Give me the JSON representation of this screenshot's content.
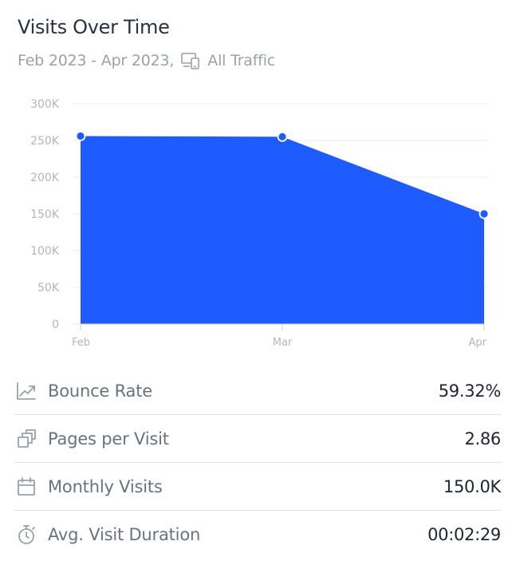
{
  "header": {
    "title": "Visits Over Time",
    "date_range": "Feb 2023 - Apr 2023,",
    "device_icon": "devices-icon",
    "traffic": "All Traffic"
  },
  "chart_data": {
    "type": "area",
    "categories": [
      "Feb",
      "Mar",
      "Apr"
    ],
    "series": [
      {
        "values": [
          256000,
          255000,
          150000
        ]
      }
    ],
    "y_ticks": [
      "0",
      "50K",
      "100K",
      "150K",
      "200K",
      "250K",
      "300K"
    ],
    "ylim": [
      0,
      300000
    ],
    "grid": true,
    "colors": {
      "fill": "#1f5cff",
      "point": "#1f5cff",
      "point_stroke": "#ffffff",
      "grid": "#eeeeee",
      "tick": "#b5b5b5"
    }
  },
  "metrics": [
    {
      "icon": "trend-arrow-icon",
      "label": "Bounce Rate",
      "value": "59.32%"
    },
    {
      "icon": "pages-stack-icon",
      "label": "Pages per Visit",
      "value": "2.86"
    },
    {
      "icon": "calendar-icon",
      "label": "Monthly Visits",
      "value": "150.0K"
    },
    {
      "icon": "stopwatch-icon",
      "label": "Avg. Visit Duration",
      "value": "00:02:29"
    }
  ]
}
